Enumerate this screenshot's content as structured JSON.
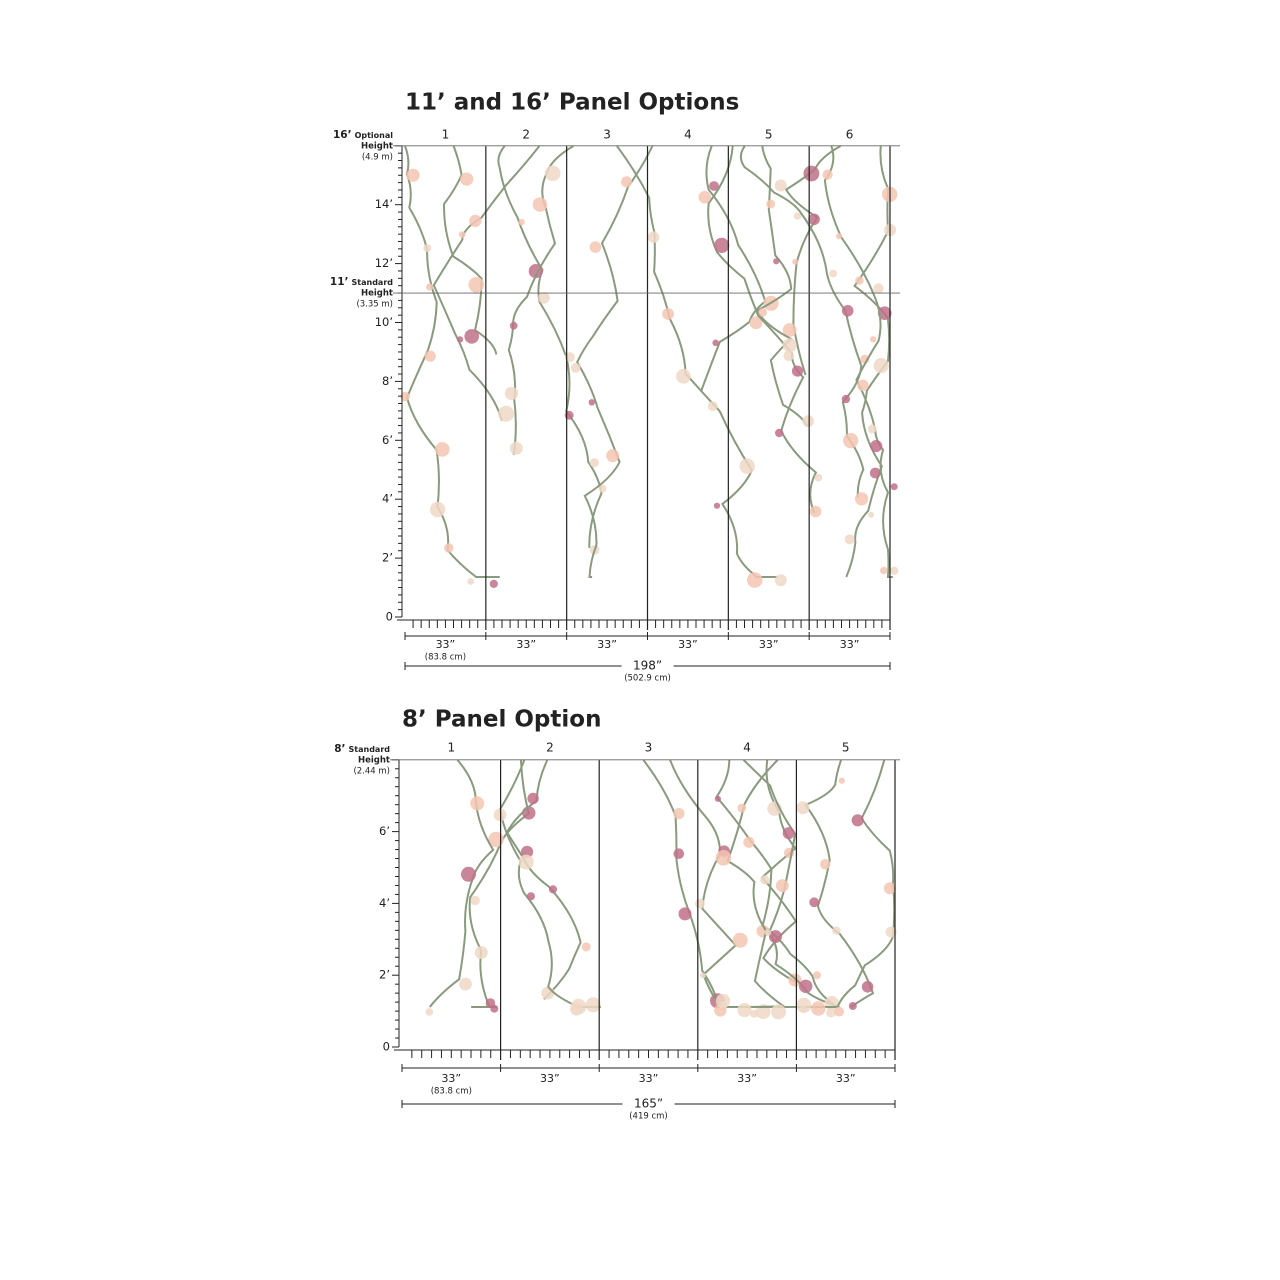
{
  "sections": [
    {
      "title": "11’ and 16’ Panel Options",
      "panels": [
        "1",
        "2",
        "3",
        "4",
        "5",
        "6"
      ],
      "height_markers": [
        {
          "value": "16’",
          "note": "Optional",
          "label": "Height",
          "metric": "(4.9 m)"
        },
        {
          "value": "11’",
          "note": "Standard",
          "label": "Height",
          "metric": "(3.35 m)"
        }
      ],
      "height_ticks": [
        "14’",
        "12’",
        "10’",
        "8’",
        "6’",
        "4’",
        "2’",
        "0"
      ],
      "panel_widths": [
        "33”",
        "33”",
        "33”",
        "33”",
        "33”",
        "33”"
      ],
      "panel_width_metric": "(83.8 cm)",
      "total_width": "198”",
      "total_width_metric": "(502.9 cm)"
    },
    {
      "title": "8’ Panel Option",
      "panels": [
        "1",
        "2",
        "3",
        "4",
        "5"
      ],
      "height_markers": [
        {
          "value": "8’",
          "note": "Standard",
          "label": "Height",
          "metric": "(2.44 m)"
        }
      ],
      "height_ticks": [
        "6’",
        "4’",
        "2’",
        "0"
      ],
      "panel_widths": [
        "33”",
        "33”",
        "33”",
        "33”",
        "33”"
      ],
      "panel_width_metric": "(83.8 cm)",
      "total_width": "165”",
      "total_width_metric": "(419 cm)"
    }
  ]
}
